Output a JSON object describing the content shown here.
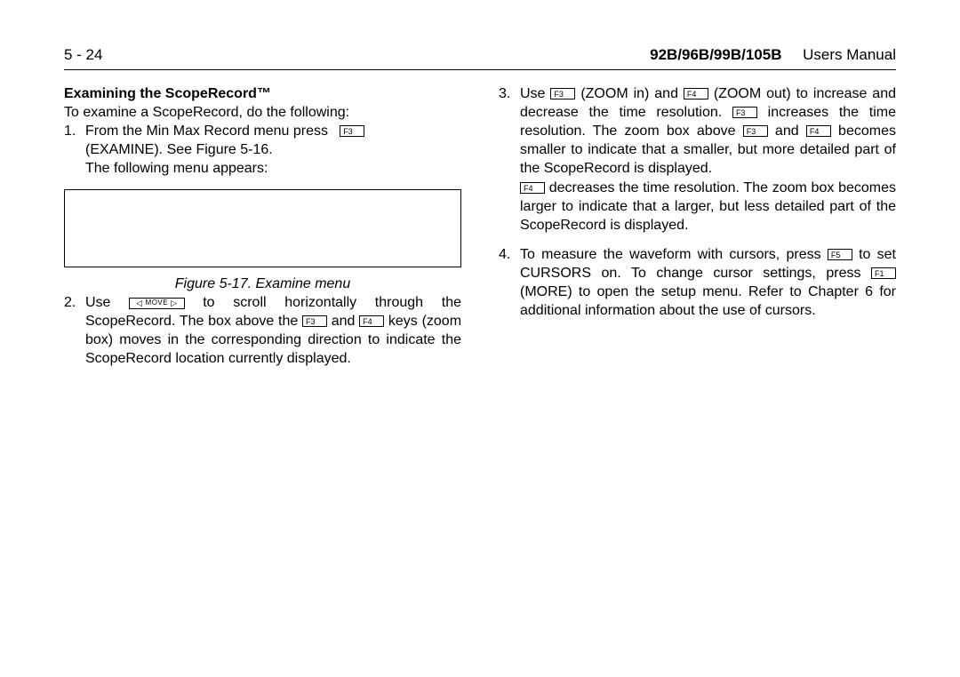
{
  "header": {
    "page_number": "5 - 24",
    "model": "92B/96B/99B/105B",
    "manual": "Users Manual"
  },
  "left": {
    "section_title": "Examining the ScopeRecord™",
    "intro": "To examine a ScopeRecord, do the following:",
    "item1": {
      "num": "1.",
      "line1_a": "From the Min Max Record menu press ",
      "key": "F3",
      "line2": "(EXAMINE). See Figure 5-16.",
      "line3": "The following menu appears:"
    },
    "fig_caption": "Figure 5-17.   Examine menu",
    "item2": {
      "num": "2.",
      "line1_a": "Use ",
      "move_label": "MOVE",
      "line1_b": " to scroll horizontally through the",
      "line2_a": "ScopeRecord. The box above the ",
      "k3": "F3",
      "line2_b": " and ",
      "k4": "F4",
      "line2_c": " keys",
      "line3": "(zoom box) moves in the corresponding direction to indicate the ScopeRecord location currently displayed."
    }
  },
  "right": {
    "item3": {
      "num": "3.",
      "l1a": "Use ",
      "k3a": "F3",
      "l1b": " (ZOOM in) and ",
      "k4a": "F4",
      "l1c": " (ZOOM out) to",
      "l2a": "increase and decrease the time resolution. ",
      "k3b": "F3",
      "l3": "increases the time resolution. The zoom box above",
      "k3c": "F3",
      "l4a": " and ",
      "k4b": "F4",
      "l4b": " becomes smaller to indicate that a",
      "l5": "smaller, but more detailed part of the ScopeRecord is displayed.",
      "k4c": "F4",
      "l6": " decreases the time resolution. The zoom box becomes larger to indicate that a larger, but less detailed part of the ScopeRecord is displayed."
    },
    "item4": {
      "num": "4.",
      "l1a": "To measure the waveform with cursors, press ",
      "k5": "F5",
      "l1b": " to",
      "l2": "set CURSORS on. To change cursor settings, press",
      "k1": "F1",
      "l3": " (MORE) to open the setup menu. Refer to",
      "l4": "Chapter 6 for additional information about the use of cursors."
    }
  }
}
